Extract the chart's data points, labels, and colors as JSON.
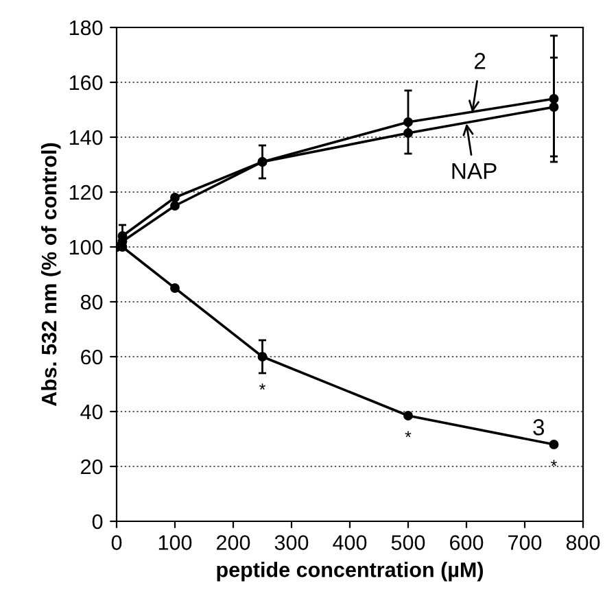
{
  "chart_data": {
    "type": "line",
    "xlabel": "peptide concentration (µM)",
    "ylabel": "Abs. 532 nm (% of control)",
    "x": [
      0,
      10,
      100,
      250,
      500,
      750
    ],
    "series": [
      {
        "color": "#000000",
        "values": [
          100,
          104,
          118,
          131,
          145.5,
          154
        ],
        "errors": [
          null,
          4,
          null,
          6,
          11.5,
          23
        ]
      },
      {
        "color": "#000000",
        "values": [
          100,
          102,
          115,
          131,
          141.5,
          151
        ],
        "errors": [
          null,
          null,
          null,
          null,
          null,
          18
        ]
      },
      {
        "color": "#000000",
        "values": [
          100,
          100,
          85,
          60,
          38.5,
          28
        ],
        "errors": [
          null,
          null,
          null,
          6,
          null,
          null
        ]
      }
    ],
    "xlim": [
      0,
      800
    ],
    "xticks": [
      0,
      100,
      200,
      300,
      400,
      500,
      600,
      700,
      800
    ],
    "ylim": [
      0,
      180
    ],
    "yticks": [
      0,
      20,
      40,
      60,
      80,
      100,
      120,
      140,
      160,
      180
    ],
    "grid": "y",
    "marker": "circle",
    "line_style": "solid",
    "legend": false,
    "annotations": [
      {
        "text": "2",
        "x": 610,
        "y": 149
      },
      {
        "text": "NAP",
        "x": 600,
        "y": 145
      },
      {
        "text": "3",
        "x": 750,
        "y": 28
      },
      {
        "text": "*",
        "x": 250,
        "y": 60
      },
      {
        "text": "*",
        "x": 500,
        "y": 38.5
      },
      {
        "text": "*",
        "x": 750,
        "y": 28
      }
    ]
  }
}
